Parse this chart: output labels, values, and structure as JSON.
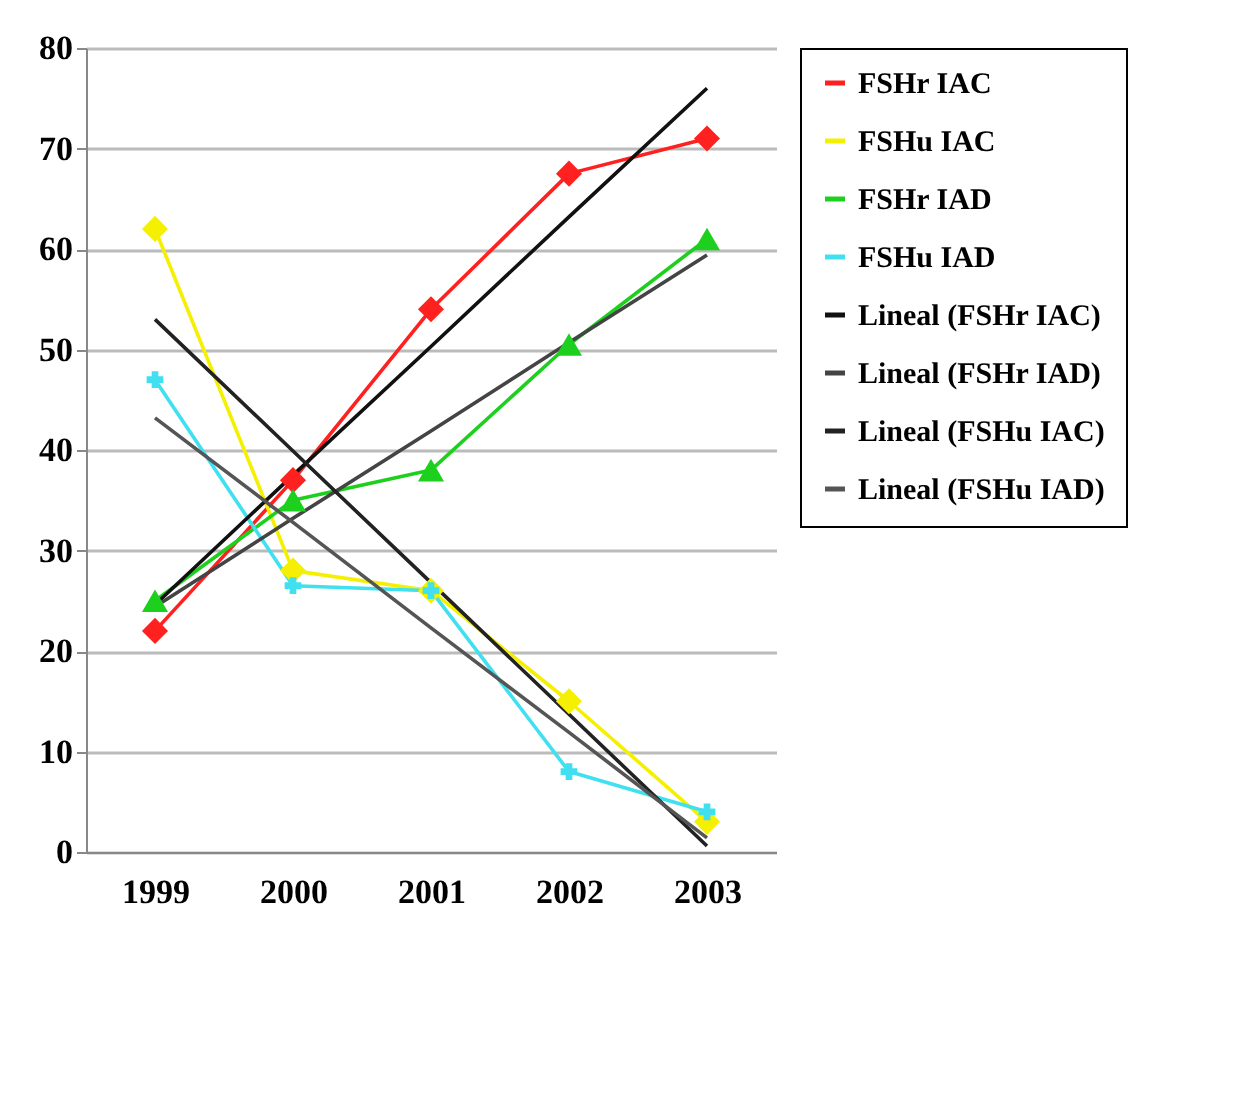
{
  "chart_data": {
    "type": "line",
    "categories": [
      "1999",
      "2000",
      "2001",
      "2002",
      "2003"
    ],
    "series": [
      {
        "name": "FSHr IAC",
        "color": "#ff2020",
        "marker": "diamond",
        "values": [
          22,
          37,
          54,
          67.5,
          71
        ]
      },
      {
        "name": "FSHu IAC",
        "color": "#f5f000",
        "marker": "diamond",
        "values": [
          62,
          28,
          26,
          15,
          3
        ]
      },
      {
        "name": "FSHr IAD",
        "color": "#1ed01e",
        "marker": "triangle",
        "values": [
          25,
          35,
          38,
          50.5,
          61
        ]
      },
      {
        "name": "FSHu IAD",
        "color": "#40e0f0",
        "marker": "cross",
        "values": [
          47,
          26.5,
          26,
          8,
          4
        ]
      },
      {
        "name": "Lineal (FSHr IAC)",
        "color": "#111111",
        "marker": "none",
        "values": [
          24.6,
          37.5,
          50.3,
          63.2,
          76
        ]
      },
      {
        "name": "Lineal (FSHr IAD)",
        "color": "#444444",
        "marker": "none",
        "values": [
          24.4,
          33.2,
          41.9,
          50.7,
          59.4
        ]
      },
      {
        "name": "Lineal (FSHu IAC)",
        "color": "#222222",
        "marker": "none",
        "values": [
          53,
          39.9,
          26.8,
          13.7,
          0.6
        ]
      },
      {
        "name": "Lineal (FSHu IAD)",
        "color": "#555555",
        "marker": "none",
        "values": [
          43.2,
          32.8,
          22.3,
          11.9,
          1.4
        ]
      }
    ],
    "ylim": [
      0,
      80
    ],
    "yticks": [
      0,
      10,
      20,
      30,
      40,
      50,
      60,
      70,
      80
    ],
    "grid": "y",
    "legend": "right"
  }
}
